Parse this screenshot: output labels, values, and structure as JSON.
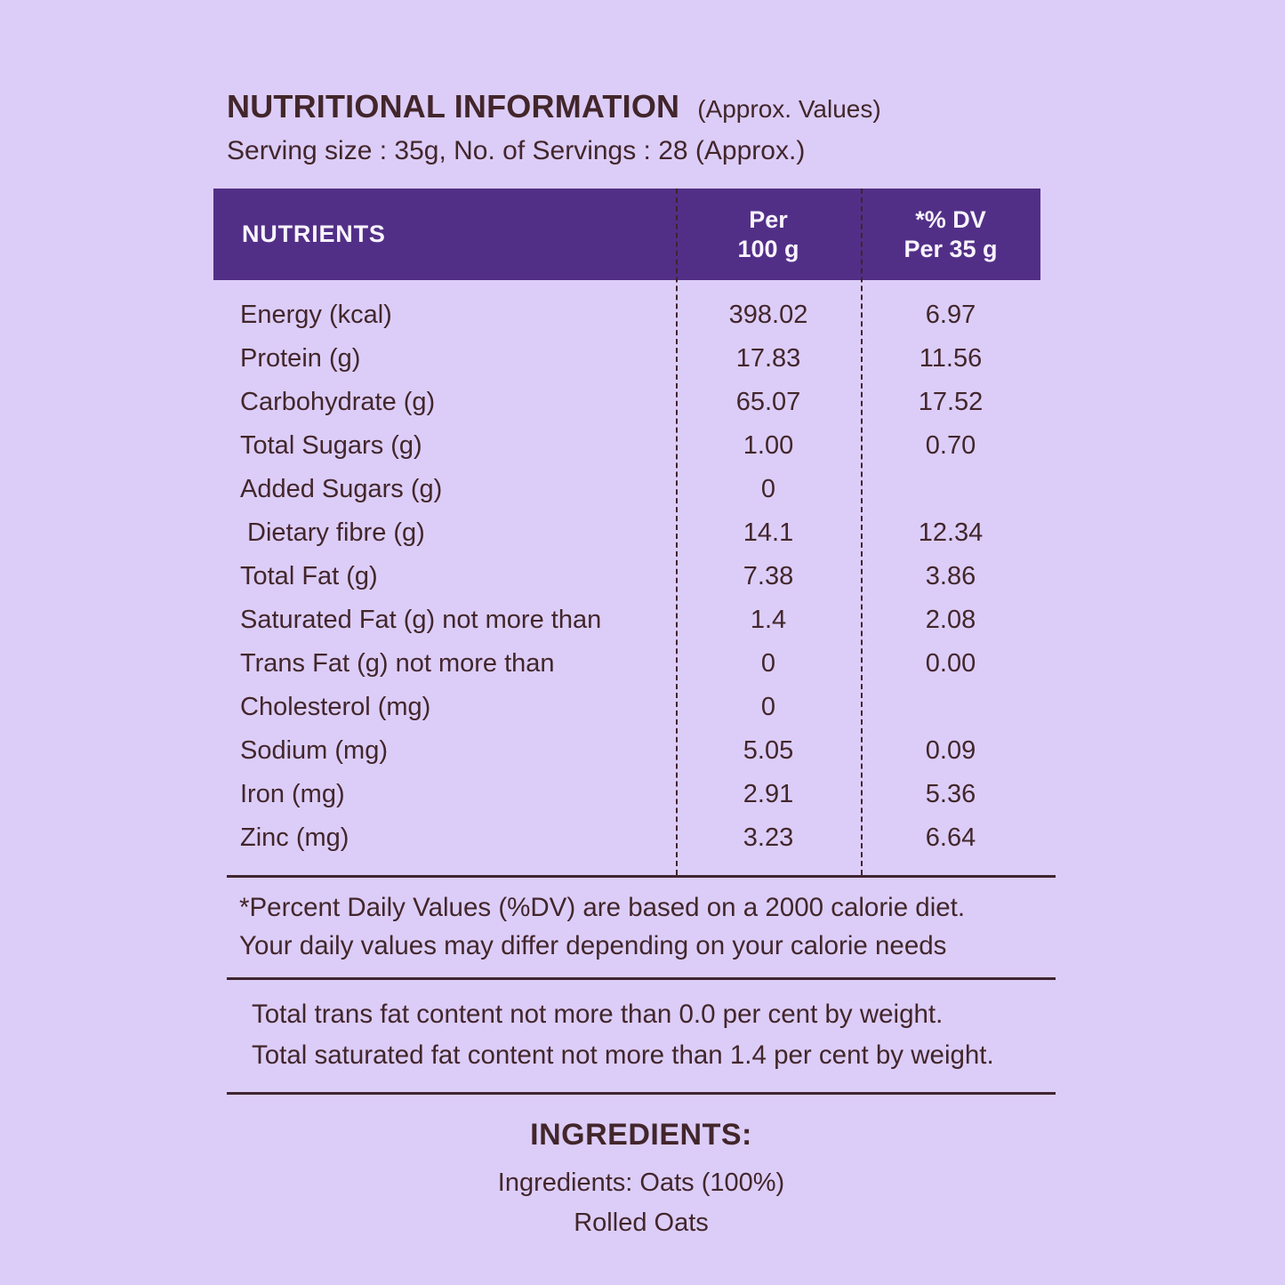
{
  "header": {
    "title": "NUTRITIONAL INFORMATION",
    "title_suffix": "(Approx. Values)",
    "serving_line": "Serving size : 35g, No. of Servings : 28 (Approx.)"
  },
  "table": {
    "columns": {
      "nutrients": "NUTRIENTS",
      "per100_line1": "Per",
      "per100_line2": "100 g",
      "dv_line1": "*% DV",
      "dv_line2": "Per 35 g"
    },
    "rows": [
      {
        "nutrient": "Energy (kcal)",
        "per100": "398.02",
        "dv": "6.97"
      },
      {
        "nutrient": "Protein (g)",
        "per100": "17.83",
        "dv": "11.56"
      },
      {
        "nutrient": "Carbohydrate (g)",
        "per100": "65.07",
        "dv": "17.52"
      },
      {
        "nutrient": "Total Sugars (g)",
        "per100": "1.00",
        "dv": "0.70"
      },
      {
        "nutrient": "Added Sugars (g)",
        "per100": "0",
        "dv": ""
      },
      {
        "nutrient": "Dietary fibre (g)",
        "per100": "14.1",
        "dv": "12.34",
        "indent": true
      },
      {
        "nutrient": "Total Fat (g)",
        "per100": "7.38",
        "dv": "3.86"
      },
      {
        "nutrient": "Saturated Fat (g) not more than",
        "per100": "1.4",
        "dv": "2.08"
      },
      {
        "nutrient": "Trans Fat (g) not more than",
        "per100": "0",
        "dv": "0.00"
      },
      {
        "nutrient": "Cholesterol (mg)",
        "per100": "0",
        "dv": ""
      },
      {
        "nutrient": "Sodium (mg)",
        "per100": "5.05",
        "dv": "0.09"
      },
      {
        "nutrient": "Iron (mg)",
        "per100": "2.91",
        "dv": "5.36"
      },
      {
        "nutrient": "Zinc (mg)",
        "per100": "3.23",
        "dv": "6.64"
      }
    ]
  },
  "dv_note": {
    "line1": "*Percent Daily Values (%DV) are based on a 2000 calorie diet.",
    "line2": "Your daily values may differ depending on your calorie needs"
  },
  "fat_note": {
    "line1": "Total trans fat content not more than 0.0 per cent by weight.",
    "line2": "Total saturated fat content not more than 1.4 per cent by weight."
  },
  "ingredients": {
    "heading": "INGREDIENTS:",
    "line1": "Ingredients: Oats (100%)",
    "line2": "Rolled Oats"
  },
  "colors": {
    "background": "#dccdf8",
    "header_purple": "#522f87",
    "text_brown": "#42262b",
    "line_brown": "#402430",
    "header_text": "#f9f4ff"
  }
}
